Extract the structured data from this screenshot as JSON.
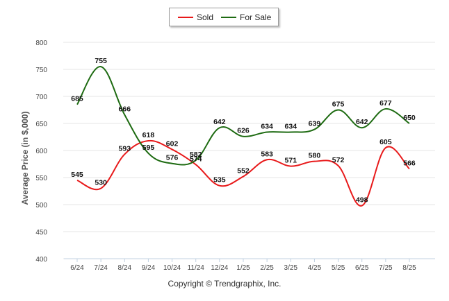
{
  "chart_data": {
    "type": "line",
    "categories": [
      "6/24",
      "7/24",
      "8/24",
      "9/24",
      "10/24",
      "11/24",
      "12/24",
      "1/25",
      "2/25",
      "3/25",
      "4/25",
      "5/25",
      "6/25",
      "7/25",
      "8/25"
    ],
    "series": [
      {
        "name": "Sold",
        "color": "#e8191a",
        "values": [
          545,
          530,
          593,
          618,
          602,
          574,
          535,
          552,
          583,
          571,
          580,
          572,
          498,
          605,
          566
        ]
      },
      {
        "name": "For Sale",
        "color": "#1e6b12",
        "values": [
          685,
          755,
          666,
          595,
          576,
          582,
          642,
          626,
          634,
          634,
          639,
          675,
          642,
          677,
          650
        ]
      }
    ],
    "ylabel": "Average Price (in $,000)",
    "ylim": [
      400,
      800
    ],
    "yticks": [
      400,
      450,
      500,
      550,
      600,
      650,
      700,
      750,
      800
    ],
    "grid": true,
    "legend_position": "top-center"
  },
  "credit": "Copyright © Trendgraphix, Inc."
}
